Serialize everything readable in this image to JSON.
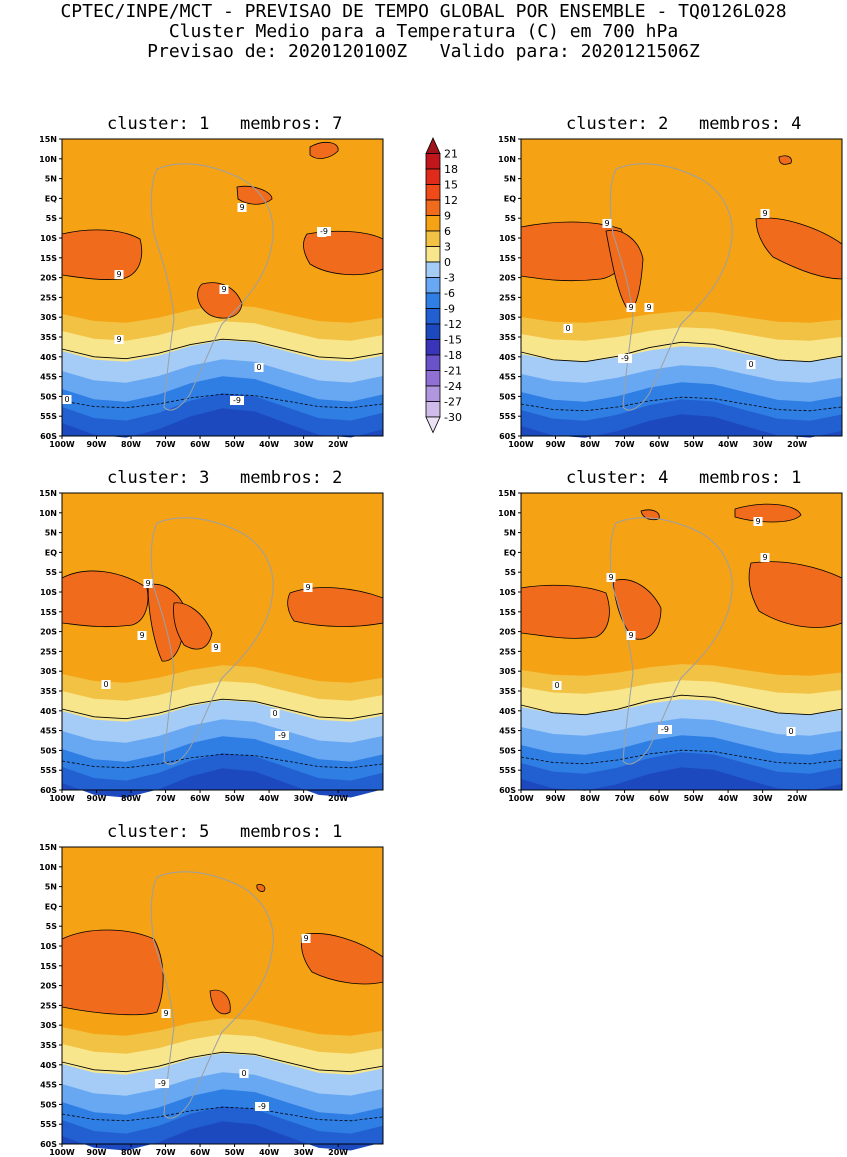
{
  "header": {
    "line1": "CPTEC/INPE/MCT - PREVISAO DE TEMPO GLOBAL POR ENSEMBLE - TQ0126L028",
    "line2": "Cluster Medio para a Temperatura (C) em 700 hPa",
    "line3": "Previsao de: 2020120100Z   Valido para: 2020121506Z"
  },
  "axes": {
    "lat_labels": [
      "15N",
      "10N",
      "5N",
      "EQ",
      "5S",
      "10S",
      "15S",
      "20S",
      "25S",
      "30S",
      "35S",
      "40S",
      "45S",
      "50S",
      "55S",
      "60S"
    ],
    "lon_labels": [
      "100W",
      "90W",
      "80W",
      "70W",
      "60W",
      "50W",
      "40W",
      "30W",
      "20W"
    ]
  },
  "colorbar": {
    "labels": [
      "21",
      "18",
      "15",
      "12",
      "9",
      "6",
      "3",
      "0",
      "-3",
      "-6",
      "-9",
      "-12",
      "-15",
      "-18",
      "-21",
      "-24",
      "-27",
      "-30"
    ],
    "colors": [
      "#a0121a",
      "#c0161c",
      "#e02a1a",
      "#f04a18",
      "#f06c1c",
      "#f5a214",
      "#f2c245",
      "#f8e68c",
      "#a4ccf6",
      "#68a8f2",
      "#2e7ee4",
      "#2260d2",
      "#1c4abe",
      "#3a34b8",
      "#6a52c8",
      "#9070d4",
      "#b096de",
      "#d0bcea",
      "#ece2f6"
    ]
  },
  "panels": [
    {
      "title": "cluster: 1   membros: 7",
      "contour_labels": [
        "9",
        "9",
        "9",
        "9",
        "9",
        "0",
        "0",
        "-9",
        "-9"
      ]
    },
    {
      "title": "cluster: 2   membros: 4",
      "contour_labels": [
        "9",
        "9",
        "9",
        "9",
        "0",
        "0",
        "-9"
      ]
    },
    {
      "title": "cluster: 3   membros: 2",
      "contour_labels": [
        "9",
        "9",
        "9",
        "9",
        "0",
        "0",
        "-9"
      ]
    },
    {
      "title": "cluster: 4   membros: 1",
      "contour_labels": [
        "9",
        "9",
        "9",
        "9",
        "0",
        "0",
        "-9"
      ]
    },
    {
      "title": "cluster: 5   membros: 1",
      "contour_labels": [
        "9",
        "9",
        "0",
        "-9",
        "-9"
      ]
    }
  ]
}
